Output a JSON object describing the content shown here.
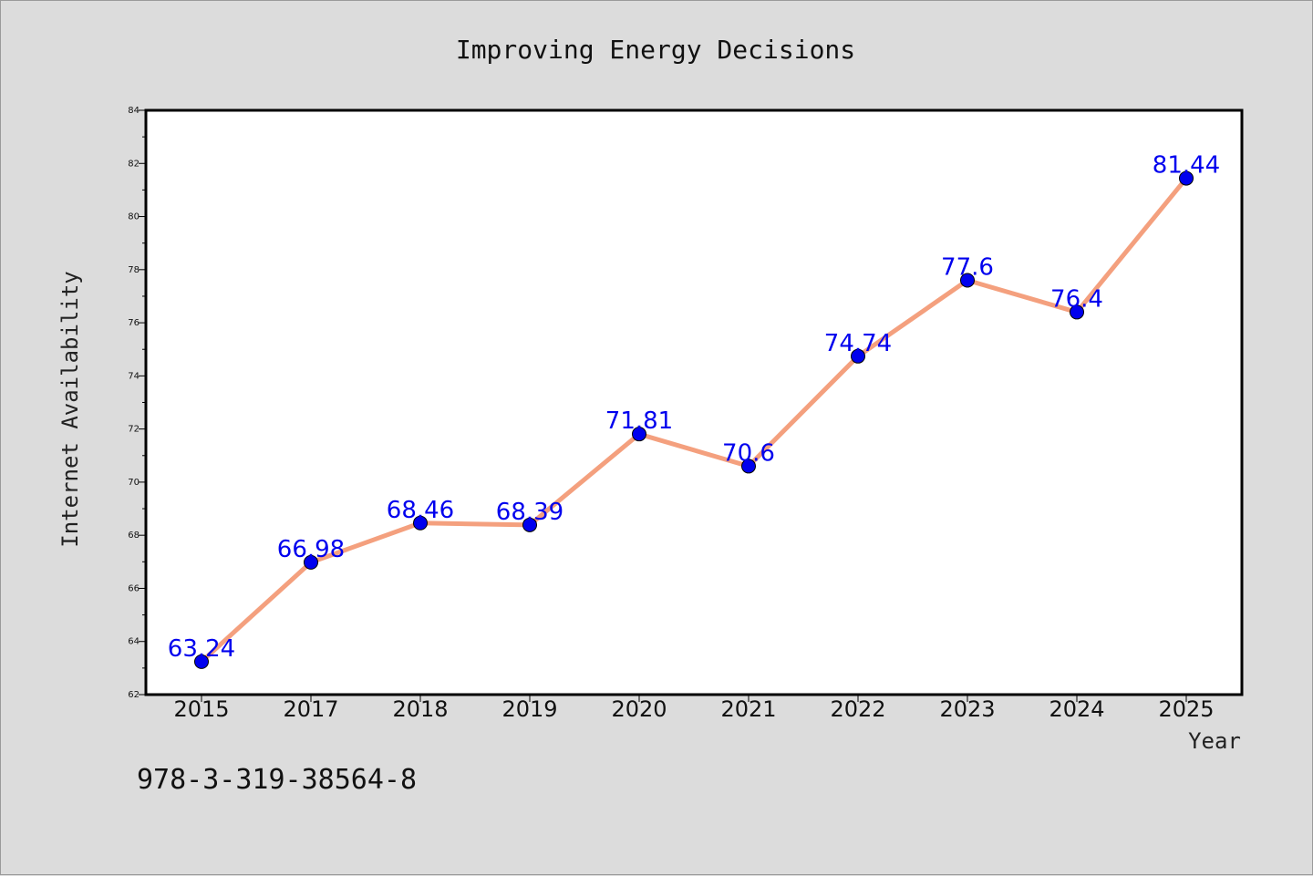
{
  "chart_data": {
    "type": "line",
    "title": "Improving Energy Decisions",
    "xlabel": "Year",
    "ylabel": "Internet Availability",
    "categories": [
      "2015",
      "2017",
      "2018",
      "2019",
      "2020",
      "2021",
      "2022",
      "2023",
      "2024",
      "2025"
    ],
    "series": [
      {
        "values": [
          63.24,
          66.98,
          68.46,
          68.39,
          71.81,
          70.6,
          74.74,
          77.6,
          76.4,
          81.44
        ],
        "labels": [
          "63.24",
          "66.98",
          "68.46",
          "68.39",
          "71.81",
          "70.6",
          "74.74",
          "77.6",
          "76.4",
          "81.44"
        ]
      }
    ],
    "ylim": [
      62,
      84
    ],
    "yticks": [
      "62",
      "64",
      "66",
      "68",
      "70",
      "72",
      "74",
      "76",
      "78",
      "80",
      "82",
      "84"
    ],
    "grid": false,
    "legend": "none",
    "colors": {
      "line": "#f4a07e",
      "marker": "#0000ee",
      "label": "#0000ee",
      "frame": "#000000",
      "background": "#dcdcdc",
      "plot_background": "#ffffff"
    }
  },
  "footer": {
    "code": "978-3-319-38564-8"
  }
}
